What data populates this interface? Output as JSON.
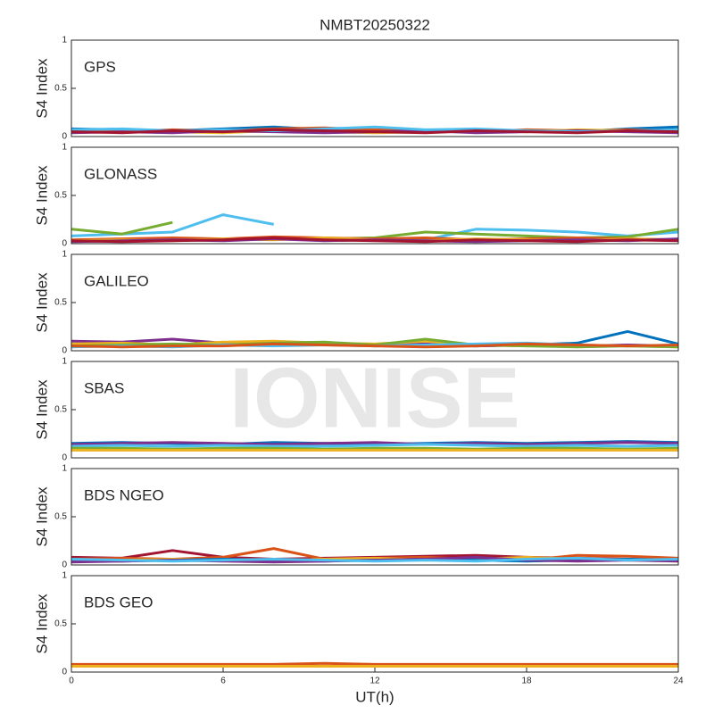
{
  "watermark": "IONISE",
  "chart_data": [
    {
      "type": "line",
      "title": "NMBT20250322",
      "label": "GPS",
      "ylabel": "S4 Index",
      "xlim": [
        0,
        24
      ],
      "ylim": [
        0,
        1
      ],
      "yticks": [
        0,
        0.5,
        1
      ],
      "x": [
        0,
        2,
        4,
        6,
        8,
        10,
        12,
        14,
        16,
        18,
        20,
        22,
        24
      ],
      "series": [
        {
          "color": "#0072BD",
          "values": [
            0.08,
            0.07,
            0.06,
            0.08,
            0.1,
            0.07,
            0.06,
            0.05,
            0.07,
            0.06,
            0.05,
            0.08,
            0.1
          ]
        },
        {
          "color": "#D95319",
          "values": [
            0.06,
            0.05,
            0.07,
            0.06,
            0.08,
            0.09,
            0.07,
            0.06,
            0.05,
            0.07,
            0.06,
            0.07,
            0.06
          ]
        },
        {
          "color": "#EDB120",
          "values": [
            0.05,
            0.06,
            0.05,
            0.04,
            0.06,
            0.05,
            0.04,
            0.05,
            0.06,
            0.05,
            0.07,
            0.06,
            0.05
          ]
        },
        {
          "color": "#7E2F8E",
          "values": [
            0.04,
            0.05,
            0.04,
            0.06,
            0.05,
            0.04,
            0.05,
            0.06,
            0.04,
            0.05,
            0.06,
            0.05,
            0.04
          ]
        },
        {
          "color": "#4DBEEE",
          "values": [
            0.07,
            0.08,
            0.06,
            0.07,
            0.06,
            0.08,
            0.1,
            0.07,
            0.08,
            0.06,
            0.05,
            0.06,
            0.07
          ]
        },
        {
          "color": "#A2142F",
          "values": [
            0.05,
            0.04,
            0.06,
            0.05,
            0.07,
            0.06,
            0.05,
            0.04,
            0.06,
            0.05,
            0.04,
            0.06,
            0.05
          ]
        }
      ]
    },
    {
      "type": "line",
      "label": "GLONASS",
      "ylabel": "S4 Index",
      "xlim": [
        0,
        24
      ],
      "ylim": [
        0,
        1
      ],
      "yticks": [
        0,
        0.5,
        1
      ],
      "x": [
        0,
        2,
        4,
        6,
        8,
        10,
        12,
        14,
        16,
        18,
        20,
        22,
        24
      ],
      "series": [
        {
          "color": "#4DBEEE",
          "values": [
            0.08,
            0.1,
            0.12,
            0.3,
            0.2,
            null,
            0.05,
            0.04,
            0.15,
            0.14,
            0.12,
            0.08,
            0.12
          ]
        },
        {
          "color": "#77AC30",
          "values": [
            0.15,
            0.1,
            0.22,
            null,
            0.06,
            0.05,
            0.06,
            0.12,
            0.1,
            0.08,
            0.06,
            0.07,
            0.15
          ]
        },
        {
          "color": "#D95319",
          "values": [
            0.04,
            0.05,
            0.06,
            0.05,
            0.07,
            0.06,
            0.05,
            0.06,
            0.04,
            0.05,
            0.06,
            0.05,
            0.04
          ]
        },
        {
          "color": "#EDB120",
          "values": [
            0.03,
            0.04,
            0.03,
            0.05,
            0.04,
            0.06,
            0.04,
            0.03,
            0.05,
            0.04,
            0.03,
            0.05,
            0.04
          ]
        },
        {
          "color": "#7E2F8E",
          "values": [
            0.02,
            0.03,
            0.04,
            0.03,
            0.05,
            0.03,
            0.04,
            0.03,
            0.02,
            0.03,
            0.04,
            0.03,
            0.05
          ]
        },
        {
          "color": "#A2142F",
          "values": [
            0.03,
            0.02,
            0.03,
            0.04,
            0.06,
            0.04,
            0.03,
            0.02,
            0.04,
            0.03,
            0.02,
            0.04,
            0.03
          ]
        }
      ]
    },
    {
      "type": "line",
      "label": "GALILEO",
      "ylabel": "S4 Index",
      "xlim": [
        0,
        24
      ],
      "ylim": [
        0,
        1
      ],
      "yticks": [
        0,
        0.5,
        1
      ],
      "x": [
        0,
        2,
        4,
        6,
        8,
        10,
        12,
        14,
        16,
        18,
        20,
        22,
        24
      ],
      "series": [
        {
          "color": "#0072BD",
          "values": [
            0.06,
            0.05,
            0.06,
            0.07,
            0.06,
            0.08,
            0.05,
            0.06,
            0.05,
            0.06,
            0.08,
            0.2,
            0.07
          ]
        },
        {
          "color": "#7E2F8E",
          "values": [
            0.1,
            0.09,
            0.12,
            0.08,
            0.07,
            0.08,
            0.06,
            0.07,
            0.05,
            0.06,
            0.05,
            0.06,
            0.05
          ]
        },
        {
          "color": "#EDB120",
          "values": [
            0.07,
            0.08,
            0.06,
            0.09,
            0.1,
            0.08,
            0.07,
            0.1,
            0.06,
            0.05,
            0.06,
            0.05,
            0.04
          ]
        },
        {
          "color": "#77AC30",
          "values": [
            0.05,
            0.06,
            0.07,
            0.06,
            0.08,
            0.09,
            0.06,
            0.12,
            0.06,
            0.05,
            0.04,
            0.05,
            0.04
          ]
        },
        {
          "color": "#4DBEEE",
          "values": [
            0.04,
            0.05,
            0.04,
            0.06,
            0.05,
            0.06,
            0.05,
            0.06,
            0.07,
            0.08,
            0.06,
            0.05,
            0.06
          ]
        },
        {
          "color": "#D95319",
          "values": [
            0.05,
            0.04,
            0.05,
            0.05,
            0.07,
            0.06,
            0.05,
            0.04,
            0.05,
            0.07,
            0.06,
            0.05,
            0.06
          ]
        }
      ]
    },
    {
      "type": "line",
      "label": "SBAS",
      "ylabel": "S4 Index",
      "xlim": [
        0,
        24
      ],
      "ylim": [
        0,
        1
      ],
      "yticks": [
        0,
        0.5,
        1
      ],
      "x": [
        0,
        2,
        4,
        6,
        8,
        10,
        12,
        14,
        16,
        18,
        20,
        22,
        24
      ],
      "series": [
        {
          "color": "#0072BD",
          "values": [
            0.15,
            0.16,
            0.15,
            0.14,
            0.16,
            0.15,
            0.14,
            0.15,
            0.16,
            0.15,
            0.16,
            0.17,
            0.16
          ]
        },
        {
          "color": "#7E2F8E",
          "values": [
            0.14,
            0.15,
            0.16,
            0.15,
            0.14,
            0.15,
            0.16,
            0.14,
            0.15,
            0.14,
            0.15,
            0.16,
            0.15
          ]
        },
        {
          "color": "#4DBEEE",
          "values": [
            0.12,
            0.13,
            0.12,
            0.13,
            0.12,
            0.12,
            0.13,
            0.14,
            0.13,
            0.12,
            0.13,
            0.12,
            0.13
          ]
        },
        {
          "color": "#77AC30",
          "values": [
            0.1,
            0.1,
            0.09,
            0.1,
            0.1,
            0.09,
            0.1,
            0.1,
            0.09,
            0.1,
            0.1,
            0.09,
            0.1
          ]
        },
        {
          "color": "#EDB120",
          "values": [
            0.08,
            0.08,
            0.08,
            0.08,
            0.08,
            0.08,
            0.08,
            0.08,
            0.08,
            0.08,
            0.08,
            0.08,
            0.08
          ]
        }
      ]
    },
    {
      "type": "line",
      "label": "BDS NGEO",
      "ylabel": "S4 Index",
      "xlim": [
        0,
        24
      ],
      "ylim": [
        0,
        1
      ],
      "yticks": [
        0,
        0.5,
        1
      ],
      "x": [
        0,
        2,
        4,
        6,
        8,
        10,
        12,
        14,
        16,
        18,
        20,
        22,
        24
      ],
      "series": [
        {
          "color": "#A2142F",
          "values": [
            0.08,
            0.07,
            0.15,
            0.08,
            0.06,
            0.07,
            0.08,
            0.09,
            0.1,
            0.08,
            0.07,
            0.06,
            0.05
          ]
        },
        {
          "color": "#D95319",
          "values": [
            0.06,
            0.07,
            0.06,
            0.08,
            0.17,
            0.06,
            0.07,
            0.08,
            0.06,
            0.05,
            0.1,
            0.09,
            0.07
          ]
        },
        {
          "color": "#EDB120",
          "values": [
            0.04,
            0.05,
            0.06,
            0.05,
            0.04,
            0.06,
            0.07,
            0.05,
            0.06,
            0.08,
            0.06,
            0.05,
            0.04
          ]
        },
        {
          "color": "#0072BD",
          "values": [
            0.05,
            0.04,
            0.05,
            0.06,
            0.05,
            0.04,
            0.05,
            0.06,
            0.05,
            0.04,
            0.05,
            0.06,
            0.05
          ]
        },
        {
          "color": "#7E2F8E",
          "values": [
            0.03,
            0.04,
            0.05,
            0.04,
            0.03,
            0.04,
            0.05,
            0.06,
            0.08,
            0.05,
            0.04,
            0.05,
            0.04
          ]
        },
        {
          "color": "#4DBEEE",
          "values": [
            0.06,
            0.05,
            0.04,
            0.05,
            0.06,
            0.05,
            0.04,
            0.05,
            0.04,
            0.06,
            0.07,
            0.05,
            0.06
          ]
        }
      ]
    },
    {
      "type": "line",
      "label": "BDS GEO",
      "ylabel": "S4 Index",
      "xlabel": "UT(h)",
      "xlim": [
        0,
        24
      ],
      "ylim": [
        0,
        1
      ],
      "yticks": [
        0,
        0.5,
        1
      ],
      "xticks": [
        0,
        6,
        12,
        18,
        24
      ],
      "x": [
        0,
        2,
        4,
        6,
        8,
        10,
        12,
        14,
        16,
        18,
        20,
        22,
        24
      ],
      "series": [
        {
          "color": "#D95319",
          "values": [
            0.08,
            0.08,
            0.08,
            0.08,
            0.08,
            0.09,
            0.08,
            0.08,
            0.08,
            0.08,
            0.08,
            0.08,
            0.08
          ]
        },
        {
          "color": "#EDB120",
          "values": [
            0.06,
            0.06,
            0.06,
            0.06,
            0.06,
            0.06,
            0.06,
            0.06,
            0.06,
            0.06,
            0.06,
            0.06,
            0.06
          ]
        }
      ]
    }
  ]
}
